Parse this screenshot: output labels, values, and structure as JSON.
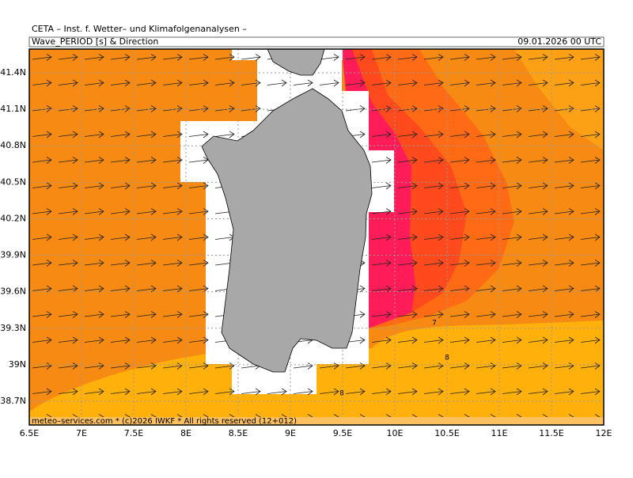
{
  "header": {
    "title": "CETA – Inst. f. Wetter– und Klimafolgenanalysen –",
    "product": "Wave_PERIOD [s] & Direction",
    "valid_time": "09.01.2026 00 UTC"
  },
  "footer": "meteo–services.com * (c)2026 IWKF * All rights reserved (12+012)",
  "map": {
    "lonlim": [
      6.5,
      12
    ],
    "latlim": [
      38.505,
      41.595
    ],
    "lonticks": [
      {
        "value": 6.5,
        "label": "6.5E"
      },
      {
        "value": 7,
        "label": "7E"
      },
      {
        "value": 7.5,
        "label": "7.5E"
      },
      {
        "value": 8,
        "label": "8E"
      },
      {
        "value": 8.5,
        "label": "8.5E"
      },
      {
        "value": 9,
        "label": "9E"
      },
      {
        "value": 9.5,
        "label": "9.5E"
      },
      {
        "value": 10,
        "label": "10E"
      },
      {
        "value": 10.5,
        "label": "10.5E"
      },
      {
        "value": 11,
        "label": "11E"
      },
      {
        "value": 11.5,
        "label": "11.5E"
      },
      {
        "value": 12,
        "label": "12E"
      }
    ],
    "latticks": [
      {
        "value": 41.4,
        "label": "41.4N"
      },
      {
        "value": 41.1,
        "label": "41.1N"
      },
      {
        "value": 40.8,
        "label": "40.8N"
      },
      {
        "value": 40.5,
        "label": "40.5N"
      },
      {
        "value": 40.2,
        "label": "40.2N"
      },
      {
        "value": 39.9,
        "label": "39.9N"
      },
      {
        "value": 39.6,
        "label": "39.6N"
      },
      {
        "value": 39.3,
        "label": "39.3N"
      },
      {
        "value": 39,
        "label": "39N"
      },
      {
        "value": 38.7,
        "label": "38.7N"
      }
    ],
    "contour_labels": [
      7,
      8,
      8
    ]
  }
}
